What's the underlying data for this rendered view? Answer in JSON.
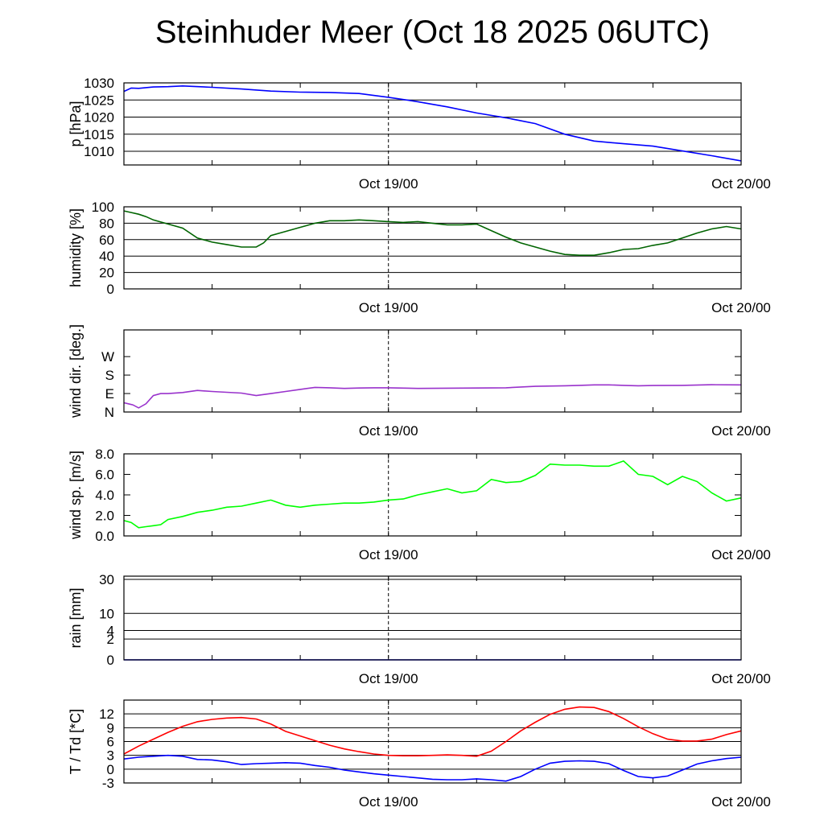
{
  "title": "Steinhuder Meer (Oct 18 2025 06UTC)",
  "x_axis": {
    "start_hour": 0,
    "end_hour": 42,
    "tick_labels": [
      {
        "hour": 18,
        "label": "Oct 19/00"
      },
      {
        "hour": 42,
        "label": "Oct 20/00"
      }
    ]
  },
  "chart_data": [
    {
      "type": "line",
      "name": "pressure",
      "ylabel": "p [hPa]",
      "ylim": [
        1006,
        1030
      ],
      "yticks": [
        1010,
        1015,
        1020,
        1025,
        1030
      ],
      "grid": true,
      "x": [
        0,
        0.5,
        1,
        2,
        3,
        4,
        6,
        8,
        10,
        12,
        14,
        16,
        18,
        20,
        22,
        24,
        26,
        28,
        30,
        32,
        34,
        36,
        38,
        40,
        42
      ],
      "series": [
        {
          "color": "#0000ff",
          "values": [
            1027.5,
            1028.5,
            1028.4,
            1028.8,
            1028.9,
            1029.1,
            1028.7,
            1028.2,
            1027.6,
            1027.3,
            1027.2,
            1026.9,
            1025.8,
            1024.5,
            1023.0,
            1021.2,
            1019.8,
            1018.1,
            1015.0,
            1013.0,
            1012.2,
            1011.5,
            1010.1,
            1008.7,
            1007.2
          ]
        }
      ]
    },
    {
      "type": "line",
      "name": "humidity",
      "ylabel": "humidity [%]",
      "ylim": [
        0,
        100
      ],
      "yticks": [
        0,
        20,
        40,
        60,
        80,
        100
      ],
      "grid": true,
      "x": [
        0,
        0.5,
        1,
        1.5,
        2,
        3,
        4,
        5,
        6,
        7,
        8,
        9,
        9.5,
        10,
        11,
        12,
        13,
        14,
        15,
        16,
        17,
        18,
        19,
        20,
        21,
        22,
        23,
        24,
        25,
        26,
        27,
        28,
        29,
        30,
        31,
        32,
        33,
        34,
        35,
        36,
        37,
        38,
        39,
        40,
        41,
        42
      ],
      "series": [
        {
          "color": "#006400",
          "values": [
            95,
            93,
            91,
            88,
            84,
            79,
            74,
            62,
            57,
            54,
            51,
            51,
            56,
            65,
            70,
            75,
            80,
            83,
            83,
            84,
            83,
            82,
            81,
            82,
            80,
            78,
            78,
            79,
            71,
            63,
            56,
            51,
            46,
            42,
            41,
            41,
            44,
            48,
            49,
            53,
            56,
            62,
            68,
            73,
            76,
            73
          ]
        }
      ]
    },
    {
      "type": "line",
      "name": "wind_direction",
      "ylabel": "wind dir. [deg.]",
      "ylim": [
        0,
        400
      ],
      "ytick_values": [
        0,
        90,
        180,
        270
      ],
      "yticks": [
        "N",
        "E",
        "S",
        "W"
      ],
      "grid": false,
      "x": [
        0,
        0.3,
        0.6,
        1,
        1.5,
        2,
        2.5,
        3,
        4,
        5,
        6,
        7,
        8,
        9,
        10,
        11,
        12,
        13,
        14,
        15,
        16,
        17,
        18,
        20,
        22,
        24,
        26,
        28,
        30,
        31,
        32,
        33,
        34,
        35,
        36,
        38,
        40,
        42
      ],
      "series": [
        {
          "color": "#9932cc",
          "values": [
            45,
            40,
            35,
            20,
            40,
            80,
            90,
            90,
            95,
            105,
            100,
            96,
            92,
            80,
            90,
            100,
            110,
            120,
            118,
            115,
            117,
            118,
            118,
            115,
            116,
            117,
            118,
            125,
            128,
            130,
            132,
            132,
            130,
            128,
            129,
            130,
            133,
            132
          ]
        }
      ]
    },
    {
      "type": "line",
      "name": "wind_speed",
      "ylabel": "wind sp. [m/s]",
      "ylim": [
        0,
        8
      ],
      "yticks": [
        "0.0",
        "2.0",
        "4.0",
        "6.0",
        "8.0"
      ],
      "grid": false,
      "x": [
        0,
        0.5,
        1,
        1.5,
        2,
        2.5,
        3,
        4,
        5,
        6,
        7,
        8,
        9,
        10,
        11,
        12,
        13,
        14,
        15,
        16,
        17,
        18,
        19,
        20,
        21,
        22,
        23,
        24,
        25,
        26,
        27,
        28,
        29,
        30,
        31,
        32,
        33,
        34,
        35,
        36,
        37,
        38,
        39,
        40,
        41,
        42
      ],
      "series": [
        {
          "color": "#00ff00",
          "values": [
            1.5,
            1.3,
            0.8,
            0.9,
            1.0,
            1.1,
            1.6,
            1.9,
            2.3,
            2.5,
            2.8,
            2.9,
            3.2,
            3.5,
            3.0,
            2.8,
            3.0,
            3.1,
            3.2,
            3.2,
            3.3,
            3.5,
            3.6,
            4.0,
            4.3,
            4.6,
            4.2,
            4.4,
            5.5,
            5.2,
            5.3,
            5.9,
            7.0,
            6.9,
            6.9,
            6.8,
            6.8,
            7.3,
            6.0,
            5.8,
            5.0,
            5.8,
            5.3,
            4.2,
            3.4,
            3.7
          ]
        }
      ]
    },
    {
      "type": "line",
      "name": "rain",
      "ylabel": "rain [mm]",
      "ylim": [
        0,
        30
      ],
      "ytick_values": [
        0,
        2,
        4,
        10,
        30
      ],
      "yticks": [
        "0",
        "2",
        "4",
        "10",
        "30"
      ],
      "grid": true,
      "x": [
        0,
        42
      ],
      "series": [
        {
          "color": "#0000ff",
          "values": [
            0,
            0
          ]
        }
      ]
    },
    {
      "type": "line",
      "name": "temperature_dewpoint",
      "ylabel": "T / Td [*C]",
      "ylim": [
        -3,
        15
      ],
      "yticks": [
        -3,
        0,
        3,
        6,
        9,
        12
      ],
      "grid": true,
      "x": [
        0,
        1,
        2,
        3,
        4,
        5,
        6,
        7,
        8,
        9,
        10,
        11,
        12,
        13,
        14,
        15,
        16,
        17,
        18,
        19,
        20,
        21,
        22,
        23,
        24,
        25,
        26,
        27,
        28,
        29,
        30,
        31,
        32,
        33,
        34,
        35,
        36,
        37,
        38,
        39,
        40,
        41,
        42
      ],
      "series": [
        {
          "color": "#ff0000",
          "values": [
            3.3,
            5.0,
            6.5,
            8.0,
            9.3,
            10.3,
            10.8,
            11.1,
            11.2,
            10.9,
            9.8,
            8.2,
            7.2,
            6.2,
            5.2,
            4.4,
            3.8,
            3.3,
            3.0,
            2.9,
            2.9,
            3.0,
            3.1,
            3.0,
            2.8,
            3.9,
            6.0,
            8.3,
            10.2,
            11.9,
            13.0,
            13.5,
            13.4,
            12.5,
            11.0,
            9.2,
            7.7,
            6.5,
            6.1,
            6.1,
            6.5,
            7.5,
            8.3
          ]
        },
        {
          "color": "#0000ff",
          "values": [
            2.2,
            2.6,
            2.8,
            3.0,
            2.8,
            2.1,
            2.0,
            1.6,
            1.0,
            1.2,
            1.3,
            1.4,
            1.3,
            0.8,
            0.4,
            -0.2,
            -0.6,
            -1.0,
            -1.3,
            -1.6,
            -1.9,
            -2.2,
            -2.3,
            -2.3,
            -2.1,
            -2.3,
            -2.6,
            -1.6,
            0.0,
            1.3,
            1.7,
            1.8,
            1.7,
            1.2,
            -0.3,
            -1.6,
            -1.9,
            -1.5,
            -0.2,
            1.1,
            1.8,
            2.3,
            2.6
          ]
        }
      ]
    }
  ]
}
